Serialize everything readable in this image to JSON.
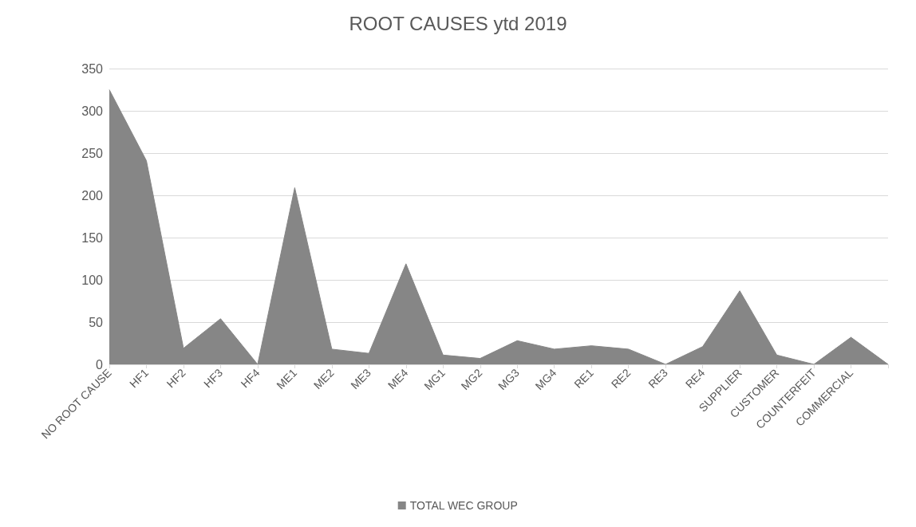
{
  "chart_data": {
    "type": "area",
    "title": "ROOT CAUSES ytd 2019",
    "categories": [
      "NO ROOT CAUSE",
      "HF1",
      "HF2",
      "HF3",
      "HF4",
      "ME1",
      "ME2",
      "ME3",
      "ME4",
      "MG1",
      "MG2",
      "MG3",
      "MG4",
      "RE1",
      "RE2",
      "RE3",
      "RE4",
      "SUPPLIER",
      "CUSTOMER",
      "COUNTERFEIT",
      "COMMERCIAL",
      null
    ],
    "series": [
      {
        "name": "TOTAL WEC GROUP",
        "color": "#868686",
        "values": [
          325,
          241,
          19,
          54,
          0,
          209,
          18,
          13,
          119,
          11,
          7,
          28,
          18,
          22,
          18,
          0,
          21,
          87,
          11,
          0,
          32,
          0
        ]
      }
    ],
    "ylim": [
      0,
      350
    ],
    "yticks": [
      0,
      50,
      100,
      150,
      200,
      250,
      300,
      350
    ],
    "grid": "y",
    "legend": "bottom"
  }
}
